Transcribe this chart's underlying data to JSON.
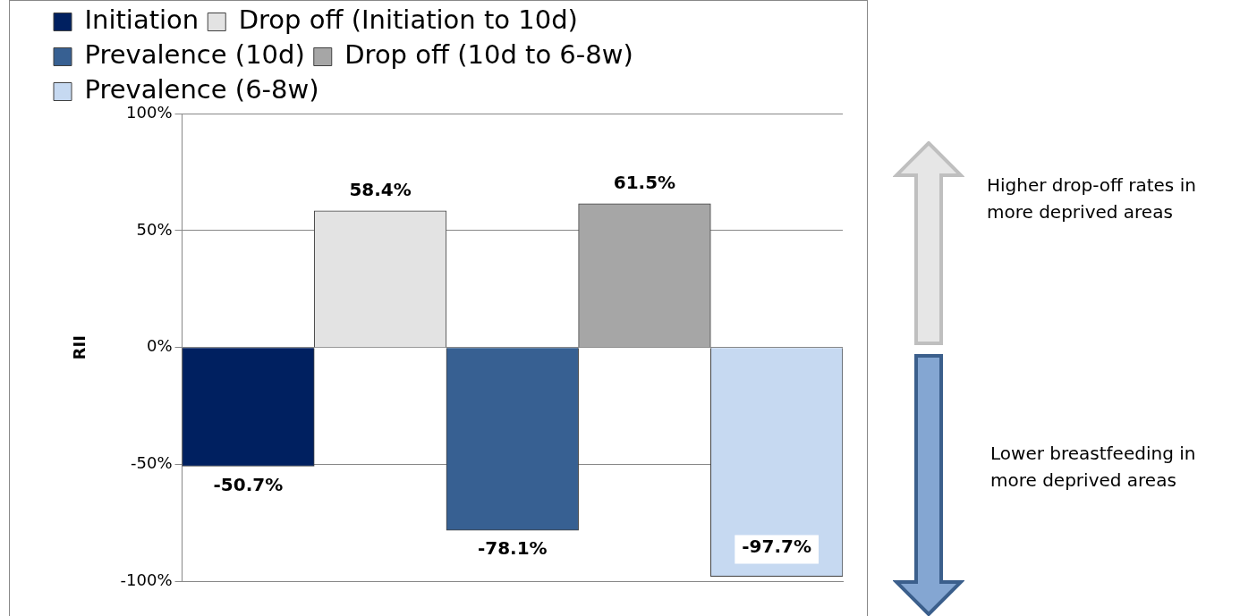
{
  "chart_data": {
    "type": "bar",
    "ylabel": "RII",
    "categories": [
      null,
      null,
      null,
      null,
      null
    ],
    "series": [
      {
        "name": "Initiation",
        "color": "#002060",
        "values": [
          -50.7,
          null,
          null,
          null,
          null
        ],
        "value_labels": [
          "-50.7%",
          null,
          null,
          null,
          null
        ]
      },
      {
        "name": "Drop off (Initiation to 10d)",
        "color": "#e3e3e3",
        "values": [
          null,
          58.4,
          null,
          null,
          null
        ],
        "value_labels": [
          null,
          "58.4%",
          null,
          null,
          null
        ]
      },
      {
        "name": "Prevalence (10d)",
        "color": "#376092",
        "values": [
          null,
          null,
          -78.1,
          null,
          null
        ],
        "value_labels": [
          null,
          null,
          "-78.1%",
          null,
          null
        ]
      },
      {
        "name": "Drop off (10d to 6-8w)",
        "color": "#a6a6a6",
        "values": [
          null,
          null,
          null,
          61.5,
          null
        ],
        "value_labels": [
          null,
          null,
          null,
          "61.5%",
          null
        ]
      },
      {
        "name": "Prevalence (6-8w)",
        "color": "#c6d9f1",
        "values": [
          null,
          null,
          null,
          null,
          -97.7
        ],
        "value_labels": [
          null,
          null,
          null,
          null,
          "-97.7%"
        ]
      }
    ],
    "ylim": [
      -100,
      100
    ],
    "yticks": [
      {
        "value": -100,
        "label": "-100%"
      },
      {
        "value": -50,
        "label": "-50%"
      },
      {
        "value": 0,
        "label": "0%"
      },
      {
        "value": 50,
        "label": "50%"
      },
      {
        "value": 100,
        "label": "100%"
      }
    ],
    "grid": "y",
    "legend": "top",
    "annotations": [
      "Higher drop-off rates in more deprived areas",
      "Lower breastfeeding in more deprived areas"
    ]
  }
}
